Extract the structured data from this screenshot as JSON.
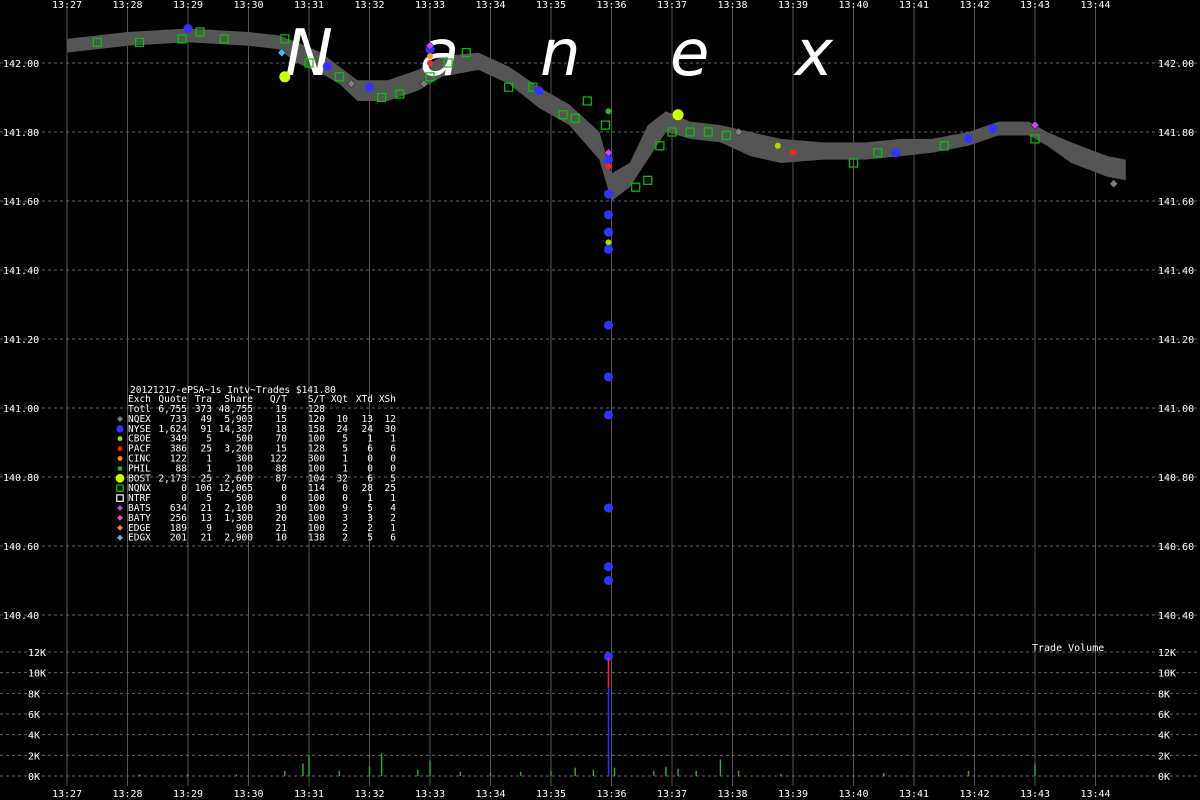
{
  "watermark": [
    "N",
    "a",
    "n",
    "e",
    "x"
  ],
  "legend": {
    "title": "20121217-ePSA~1s Intv~Trades $141.80",
    "header": [
      "Exch",
      "Quote",
      "Tra",
      "Share",
      "Q/T",
      "S/T",
      "XQt",
      "XTd",
      "XSh"
    ],
    "rows": [
      {
        "exch": "Totl",
        "quote": "6,755",
        "tra": "373",
        "share": "48,755",
        "qt": "19",
        "st": "128",
        "xqt": "",
        "xtd": "",
        "xsh": "",
        "color": "",
        "marker": "none"
      },
      {
        "exch": "NQEX",
        "quote": "733",
        "tra": "49",
        "share": "5,903",
        "qt": "15",
        "st": "120",
        "xqt": "10",
        "xtd": "13",
        "xsh": "12",
        "color": "#808080",
        "marker": "diamond"
      },
      {
        "exch": "NYSE",
        "quote": "1,624",
        "tra": "91",
        "share": "14,387",
        "qt": "18",
        "st": "158",
        "xqt": "24",
        "xtd": "24",
        "xsh": "30",
        "color": "#3333ff",
        "marker": "circle-lg"
      },
      {
        "exch": "CBOE",
        "quote": "349",
        "tra": "5",
        "share": "500",
        "qt": "70",
        "st": "100",
        "xqt": "5",
        "xtd": "1",
        "xsh": "1",
        "color": "#aadd00",
        "marker": "circle"
      },
      {
        "exch": "PACF",
        "quote": "386",
        "tra": "25",
        "share": "3,200",
        "qt": "15",
        "st": "128",
        "xqt": "5",
        "xtd": "6",
        "xsh": "6",
        "color": "#ff2222",
        "marker": "circle"
      },
      {
        "exch": "CINC",
        "quote": "122",
        "tra": "1",
        "share": "300",
        "qt": "122",
        "st": "300",
        "xqt": "1",
        "xtd": "0",
        "xsh": "0",
        "color": "#ff9900",
        "marker": "circle"
      },
      {
        "exch": "PHIL",
        "quote": "88",
        "tra": "1",
        "share": "100",
        "qt": "88",
        "st": "100",
        "xqt": "1",
        "xtd": "0",
        "xsh": "0",
        "color": "#22bb22",
        "marker": "circle"
      },
      {
        "exch": "BOST",
        "quote": "2,173",
        "tra": "25",
        "share": "2,600",
        "qt": "87",
        "st": "104",
        "xqt": "32",
        "xtd": "6",
        "xsh": "5",
        "color": "#ccff00",
        "marker": "circle-xl"
      },
      {
        "exch": "NQNX",
        "quote": "0",
        "tra": "106",
        "share": "12,065",
        "qt": "0",
        "st": "114",
        "xqt": "0",
        "xtd": "28",
        "xsh": "25",
        "color": "#00cc00",
        "marker": "square"
      },
      {
        "exch": "NTRF",
        "quote": "0",
        "tra": "5",
        "share": "500",
        "qt": "0",
        "st": "100",
        "xqt": "0",
        "xtd": "1",
        "xsh": "1",
        "color": "#ffffff",
        "marker": "square"
      },
      {
        "exch": "BATS",
        "quote": "634",
        "tra": "21",
        "share": "2,100",
        "qt": "30",
        "st": "100",
        "xqt": "9",
        "xtd": "5",
        "xsh": "4",
        "color": "#cc44ff",
        "marker": "diamond"
      },
      {
        "exch": "BATY",
        "quote": "256",
        "tra": "13",
        "share": "1,300",
        "qt": "20",
        "st": "100",
        "xqt": "3",
        "xtd": "3",
        "xsh": "2",
        "color": "#ff44cc",
        "marker": "diamond"
      },
      {
        "exch": "EDGE",
        "quote": "189",
        "tra": "9",
        "share": "900",
        "qt": "21",
        "st": "100",
        "xqt": "2",
        "xtd": "2",
        "xsh": "1",
        "color": "#ff8800",
        "marker": "diamond"
      },
      {
        "exch": "EDGX",
        "quote": "201",
        "tra": "21",
        "share": "2,900",
        "qt": "10",
        "st": "138",
        "xqt": "2",
        "xtd": "5",
        "xsh": "6",
        "color": "#44bbff",
        "marker": "diamond"
      }
    ]
  },
  "chart_data": [
    {
      "type": "scatter",
      "panel": "price",
      "x_ticks": [
        "13:27",
        "13:28",
        "13:29",
        "13:30",
        "13:31",
        "13:32",
        "13:33",
        "13:34",
        "13:35",
        "13:36",
        "13:37",
        "13:38",
        "13:39",
        "13:40",
        "13:41",
        "13:42",
        "13:43",
        "13:44"
      ],
      "x_range_minutes": [
        27.0,
        44.7
      ],
      "y_ticks": [
        "140.40",
        "140.60",
        "140.80",
        "141.00",
        "141.20",
        "141.40",
        "141.60",
        "141.80",
        "142.00"
      ],
      "ylim": [
        140.32,
        142.12
      ],
      "grid": true,
      "nbbo_band": [
        {
          "t": 27.0,
          "lo": 142.03,
          "hi": 142.07
        },
        {
          "t": 28.0,
          "lo": 142.05,
          "hi": 142.09
        },
        {
          "t": 29.0,
          "lo": 142.06,
          "hi": 142.1
        },
        {
          "t": 30.0,
          "lo": 142.05,
          "hi": 142.09
        },
        {
          "t": 30.5,
          "lo": 142.04,
          "hi": 142.08
        },
        {
          "t": 30.8,
          "lo": 142.0,
          "hi": 142.06
        },
        {
          "t": 31.2,
          "lo": 141.97,
          "hi": 142.03
        },
        {
          "t": 31.5,
          "lo": 141.94,
          "hi": 141.99
        },
        {
          "t": 31.8,
          "lo": 141.89,
          "hi": 141.95
        },
        {
          "t": 32.3,
          "lo": 141.89,
          "hi": 141.95
        },
        {
          "t": 32.8,
          "lo": 141.92,
          "hi": 141.98
        },
        {
          "t": 33.2,
          "lo": 141.96,
          "hi": 142.02
        },
        {
          "t": 33.8,
          "lo": 141.98,
          "hi": 142.03
        },
        {
          "t": 34.3,
          "lo": 141.94,
          "hi": 141.99
        },
        {
          "t": 34.8,
          "lo": 141.87,
          "hi": 141.93
        },
        {
          "t": 35.3,
          "lo": 141.82,
          "hi": 141.88
        },
        {
          "t": 35.8,
          "lo": 141.72,
          "hi": 141.8
        },
        {
          "t": 36.0,
          "lo": 141.6,
          "hi": 141.68
        },
        {
          "t": 36.3,
          "lo": 141.64,
          "hi": 141.71
        },
        {
          "t": 36.6,
          "lo": 141.72,
          "hi": 141.82
        },
        {
          "t": 36.9,
          "lo": 141.8,
          "hi": 141.86
        },
        {
          "t": 37.3,
          "lo": 141.78,
          "hi": 141.83
        },
        {
          "t": 37.8,
          "lo": 141.77,
          "hi": 141.82
        },
        {
          "t": 38.3,
          "lo": 141.73,
          "hi": 141.8
        },
        {
          "t": 38.8,
          "lo": 141.71,
          "hi": 141.78
        },
        {
          "t": 39.5,
          "lo": 141.72,
          "hi": 141.77
        },
        {
          "t": 40.2,
          "lo": 141.72,
          "hi": 141.77
        },
        {
          "t": 40.8,
          "lo": 141.73,
          "hi": 141.78
        },
        {
          "t": 41.3,
          "lo": 141.74,
          "hi": 141.78
        },
        {
          "t": 41.9,
          "lo": 141.76,
          "hi": 141.8
        },
        {
          "t": 42.4,
          "lo": 141.79,
          "hi": 141.83
        },
        {
          "t": 42.9,
          "lo": 141.79,
          "hi": 141.83
        },
        {
          "t": 43.2,
          "lo": 141.76,
          "hi": 141.8
        },
        {
          "t": 43.6,
          "lo": 141.71,
          "hi": 141.77
        },
        {
          "t": 44.2,
          "lo": 141.67,
          "hi": 141.73
        },
        {
          "t": 44.5,
          "lo": 141.66,
          "hi": 141.72
        }
      ],
      "trades": [
        {
          "exch": "NQNX",
          "t": 27.5,
          "p": 142.06
        },
        {
          "exch": "NQNX",
          "t": 28.2,
          "p": 142.06
        },
        {
          "exch": "NQNX",
          "t": 28.9,
          "p": 142.07
        },
        {
          "exch": "NQNX",
          "t": 29.2,
          "p": 142.09
        },
        {
          "exch": "NQNX",
          "t": 29.6,
          "p": 142.07
        },
        {
          "exch": "NYSE",
          "t": 29.0,
          "p": 142.1
        },
        {
          "exch": "NQNX",
          "t": 30.6,
          "p": 142.07
        },
        {
          "exch": "BOST",
          "t": 30.6,
          "p": 141.96
        },
        {
          "exch": "EDGX",
          "t": 30.55,
          "p": 142.03
        },
        {
          "exch": "NQNX",
          "t": 31.0,
          "p": 142.0
        },
        {
          "exch": "NYSE",
          "t": 31.3,
          "p": 141.99
        },
        {
          "exch": "NQNX",
          "t": 31.5,
          "p": 141.96
        },
        {
          "exch": "NQEX",
          "t": 31.7,
          "p": 141.94
        },
        {
          "exch": "NYSE",
          "t": 32.0,
          "p": 141.93
        },
        {
          "exch": "NQNX",
          "t": 32.2,
          "p": 141.9
        },
        {
          "exch": "NQNX",
          "t": 32.5,
          "p": 141.91
        },
        {
          "exch": "NQEX",
          "t": 32.9,
          "p": 141.94
        },
        {
          "exch": "NQNX",
          "t": 33.0,
          "p": 141.96
        },
        {
          "exch": "NYSE",
          "t": 33.0,
          "p": 142.04
        },
        {
          "exch": "PACF",
          "t": 33.0,
          "p": 142.0
        },
        {
          "exch": "CINC",
          "t": 33.0,
          "p": 142.02
        },
        {
          "exch": "BATS",
          "t": 33.0,
          "p": 142.05
        },
        {
          "exch": "NQNX",
          "t": 33.3,
          "p": 142.0
        },
        {
          "exch": "NQNX",
          "t": 33.6,
          "p": 142.03
        },
        {
          "exch": "NQNX",
          "t": 34.3,
          "p": 141.93
        },
        {
          "exch": "NQNX",
          "t": 34.7,
          "p": 141.93
        },
        {
          "exch": "NYSE",
          "t": 34.8,
          "p": 141.92
        },
        {
          "exch": "NQNX",
          "t": 35.2,
          "p": 141.85
        },
        {
          "exch": "NQNX",
          "t": 35.4,
          "p": 141.84
        },
        {
          "exch": "NQNX",
          "t": 35.6,
          "p": 141.89
        },
        {
          "exch": "NQNX",
          "t": 35.9,
          "p": 141.82
        },
        {
          "exch": "PHIL",
          "t": 35.95,
          "p": 141.86
        },
        {
          "exch": "NYSE",
          "t": 35.95,
          "p": 141.72
        },
        {
          "exch": "PACF",
          "t": 35.95,
          "p": 141.7
        },
        {
          "exch": "BATS",
          "t": 35.95,
          "p": 141.74
        },
        {
          "exch": "NYSE",
          "t": 35.95,
          "p": 141.62
        },
        {
          "exch": "NYSE",
          "t": 35.95,
          "p": 141.56
        },
        {
          "exch": "NYSE",
          "t": 35.95,
          "p": 141.51
        },
        {
          "exch": "CBOE",
          "t": 35.95,
          "p": 141.48
        },
        {
          "exch": "NYSE",
          "t": 35.95,
          "p": 141.46
        },
        {
          "exch": "NYSE",
          "t": 35.95,
          "p": 141.24
        },
        {
          "exch": "NYSE",
          "t": 35.95,
          "p": 141.09
        },
        {
          "exch": "NYSE",
          "t": 35.95,
          "p": 140.98
        },
        {
          "exch": "NYSE",
          "t": 35.95,
          "p": 140.71
        },
        {
          "exch": "NYSE",
          "t": 35.95,
          "p": 140.54
        },
        {
          "exch": "NYSE",
          "t": 35.95,
          "p": 140.5
        },
        {
          "exch": "NYSE",
          "t": 35.95,
          "p": 140.28
        },
        {
          "exch": "NQNX",
          "t": 36.4,
          "p": 141.64
        },
        {
          "exch": "NQNX",
          "t": 36.6,
          "p": 141.66
        },
        {
          "exch": "NQNX",
          "t": 36.8,
          "p": 141.76
        },
        {
          "exch": "NQNX",
          "t": 37.0,
          "p": 141.8
        },
        {
          "exch": "BOST",
          "t": 37.1,
          "p": 141.85
        },
        {
          "exch": "NQNX",
          "t": 37.3,
          "p": 141.8
        },
        {
          "exch": "NQNX",
          "t": 37.6,
          "p": 141.8
        },
        {
          "exch": "NQNX",
          "t": 37.9,
          "p": 141.79
        },
        {
          "exch": "NQEX",
          "t": 38.1,
          "p": 141.8
        },
        {
          "exch": "CBOE",
          "t": 38.75,
          "p": 141.76
        },
        {
          "exch": "PACF",
          "t": 39.0,
          "p": 141.74
        },
        {
          "exch": "NQNX",
          "t": 40.0,
          "p": 141.71
        },
        {
          "exch": "NQNX",
          "t": 40.4,
          "p": 141.74
        },
        {
          "exch": "NYSE",
          "t": 40.7,
          "p": 141.74
        },
        {
          "exch": "NQNX",
          "t": 41.5,
          "p": 141.76
        },
        {
          "exch": "NYSE",
          "t": 41.9,
          "p": 141.78
        },
        {
          "exch": "NYSE",
          "t": 42.3,
          "p": 141.81
        },
        {
          "exch": "BATS",
          "t": 43.0,
          "p": 141.82
        },
        {
          "exch": "NQNX",
          "t": 43.0,
          "p": 141.78
        },
        {
          "exch": "NQEX",
          "t": 44.3,
          "p": 141.65
        }
      ]
    },
    {
      "type": "bar",
      "panel": "volume",
      "label": "Trade Volume",
      "y_ticks": [
        "0K",
        "2K",
        "4K",
        "6K",
        "8K",
        "10K",
        "12K"
      ],
      "ylim": [
        0,
        12000
      ],
      "volume": [
        {
          "t": 28.2,
          "v": 150
        },
        {
          "t": 29.0,
          "v": 200
        },
        {
          "t": 29.8,
          "v": 150
        },
        {
          "t": 30.6,
          "v": 500
        },
        {
          "t": 30.9,
          "v": 1200
        },
        {
          "t": 31.0,
          "v": 2000
        },
        {
          "t": 31.5,
          "v": 500
        },
        {
          "t": 32.0,
          "v": 900
        },
        {
          "t": 32.2,
          "v": 2200
        },
        {
          "t": 32.8,
          "v": 600
        },
        {
          "t": 33.0,
          "v": 1500
        },
        {
          "t": 33.5,
          "v": 400
        },
        {
          "t": 34.0,
          "v": 300
        },
        {
          "t": 34.5,
          "v": 400
        },
        {
          "t": 35.0,
          "v": 500
        },
        {
          "t": 35.4,
          "v": 800
        },
        {
          "t": 35.7,
          "v": 600
        },
        {
          "t": 35.95,
          "v": 11500
        },
        {
          "t": 36.05,
          "v": 800
        },
        {
          "t": 36.7,
          "v": 500
        },
        {
          "t": 36.9,
          "v": 900
        },
        {
          "t": 37.1,
          "v": 700
        },
        {
          "t": 37.4,
          "v": 500
        },
        {
          "t": 37.8,
          "v": 1600
        },
        {
          "t": 38.1,
          "v": 500
        },
        {
          "t": 38.8,
          "v": 200
        },
        {
          "t": 40.5,
          "v": 300
        },
        {
          "t": 41.9,
          "v": 500
        },
        {
          "t": 43.0,
          "v": 1200
        }
      ]
    }
  ]
}
